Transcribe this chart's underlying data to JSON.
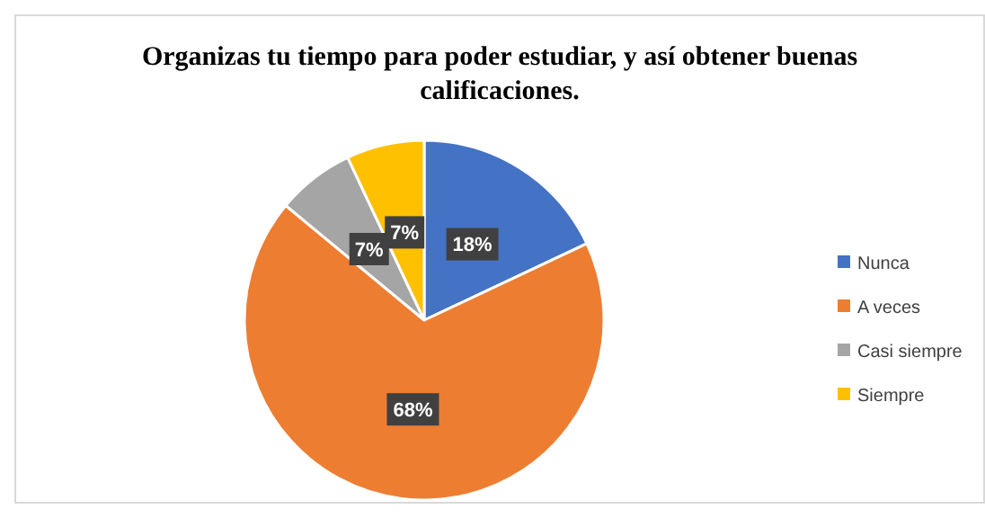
{
  "chart_data": {
    "type": "pie",
    "title": "Organizas  tu tiempo para poder estudiar, y así obtener buenas calificaciones.",
    "categories": [
      "Nunca",
      "A veces",
      "Casi siempre",
      "Siempre"
    ],
    "values": [
      18,
      68,
      7,
      7
    ],
    "colors": [
      "#4472c4",
      "#ed7d31",
      "#a5a5a5",
      "#ffc000"
    ],
    "value_labels": [
      "18%",
      "68%",
      "7%",
      "7%"
    ],
    "legend": "right"
  }
}
